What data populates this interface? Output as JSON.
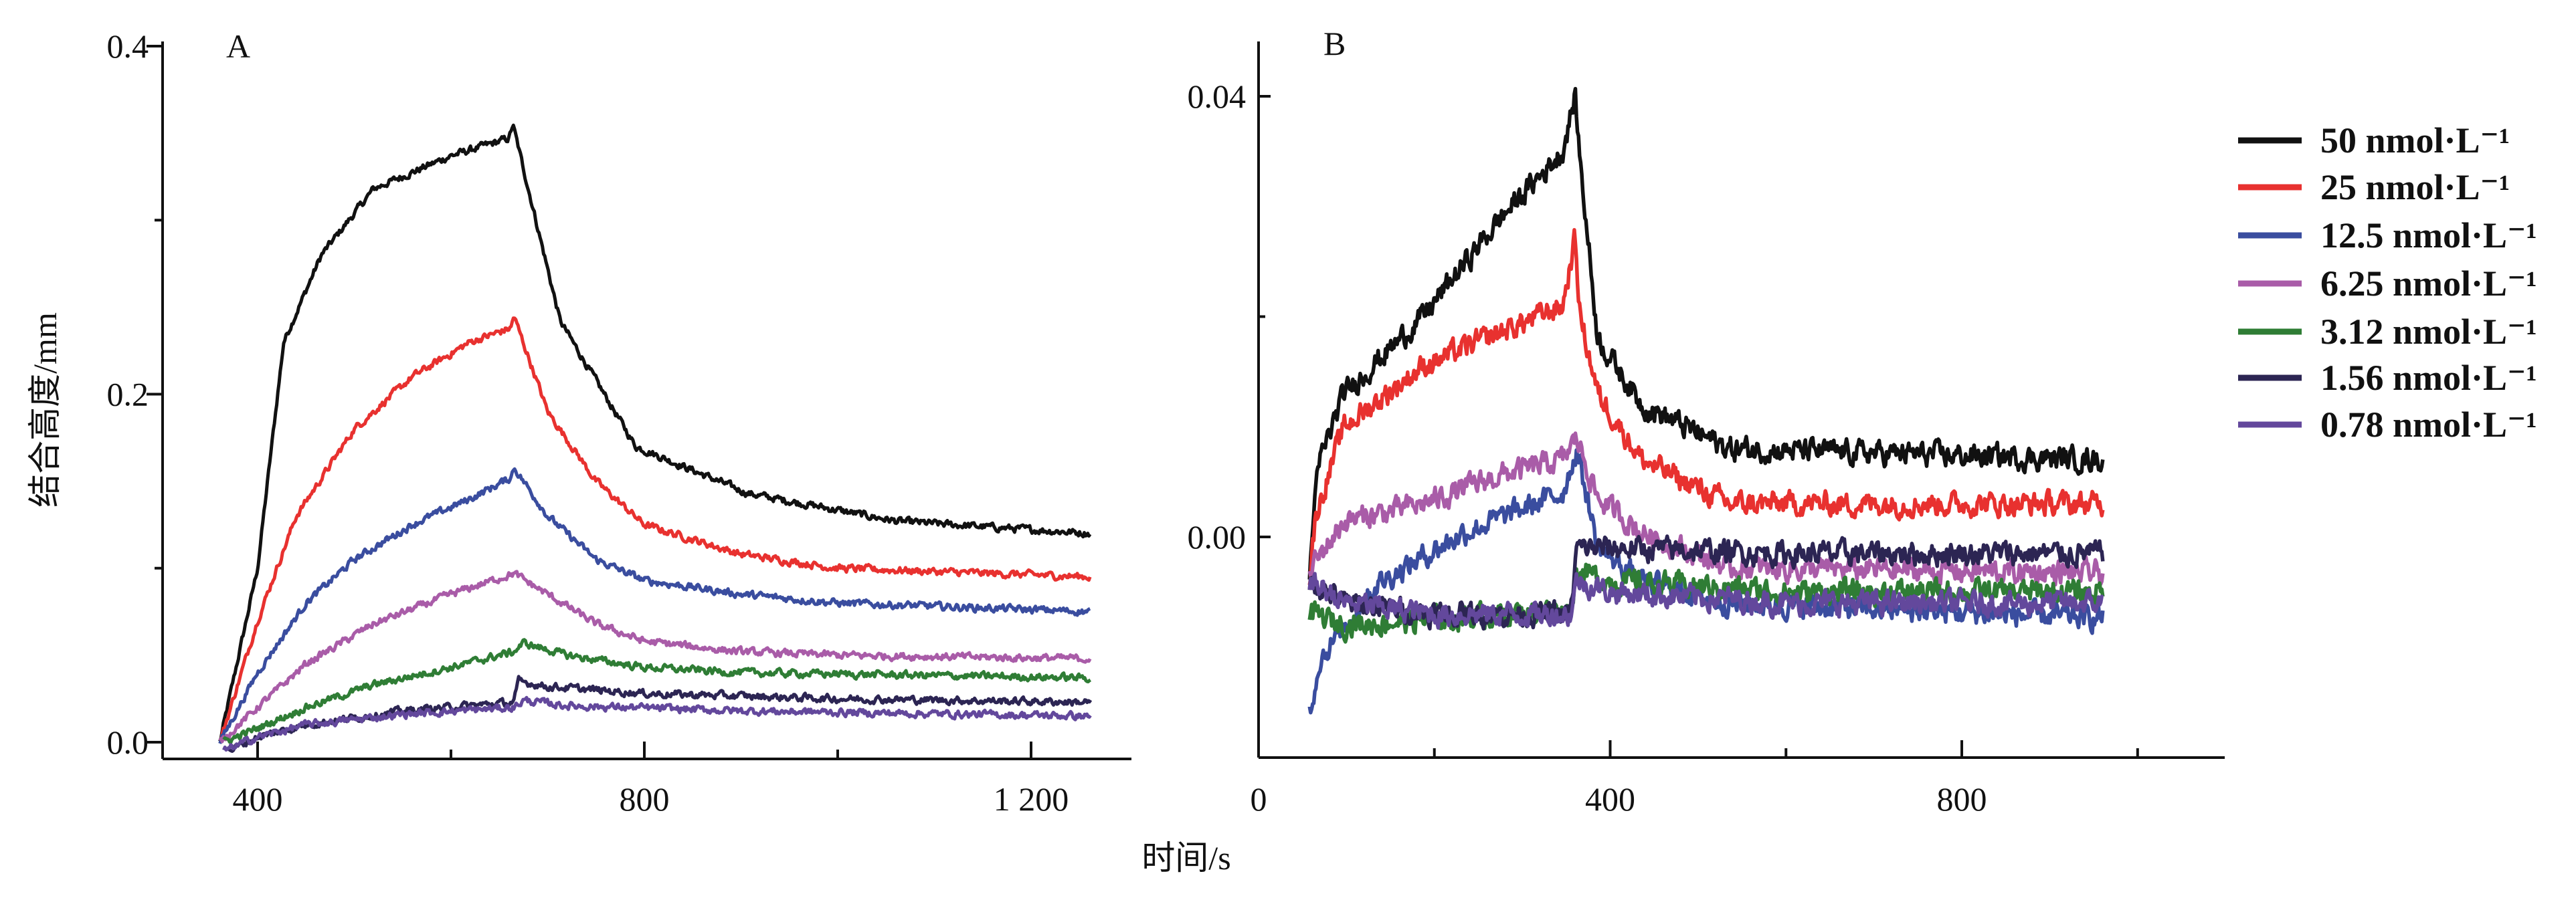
{
  "x_label": "时间/s",
  "chart_data": [
    {
      "type": "line",
      "panel_label": "A",
      "ylabel": "结合高度/mm",
      "xlabel": "时间/s",
      "xlim": [
        300,
        1300
      ],
      "ylim": [
        0,
        0.4
      ],
      "x_ticks": [
        {
          "value": 400,
          "label": "400"
        },
        {
          "value": 800,
          "label": "800"
        },
        {
          "value": 1200,
          "label": "1 200"
        }
      ],
      "x_minor_ticks": [
        600,
        1000
      ],
      "y_ticks": [
        {
          "value": 0,
          "label": "0.0"
        },
        {
          "value": 0.2,
          "label": "0.2"
        },
        {
          "value": 0.4,
          "label": "0.4"
        }
      ],
      "y_minor_ticks": [
        0.1,
        0.3
      ],
      "grid": false,
      "series": [
        {
          "name": "50 nmol·L⁻¹",
          "color": "#111111",
          "points": [
            [
              361,
              0
            ],
            [
              400,
              0.1
            ],
            [
              427,
              0.23
            ],
            [
              466,
              0.28
            ],
            [
              520,
              0.318
            ],
            [
              600,
              0.337
            ],
            [
              660,
              0.347
            ],
            [
              664,
              0.355
            ],
            [
              713,
              0.242
            ],
            [
              791,
              0.17
            ],
            [
              907,
              0.143
            ],
            [
              1061,
              0.127
            ],
            [
              1262,
              0.12
            ]
          ]
        },
        {
          "name": "25 nmol·L⁻¹",
          "color": "#e8312f",
          "points": [
            [
              361,
              0
            ],
            [
              400,
              0.07
            ],
            [
              440,
              0.13
            ],
            [
              500,
              0.18
            ],
            [
              560,
              0.21
            ],
            [
              620,
              0.23
            ],
            [
              662,
              0.238
            ],
            [
              665,
              0.245
            ],
            [
              700,
              0.19
            ],
            [
              750,
              0.15
            ],
            [
              800,
              0.125
            ],
            [
              900,
              0.108
            ],
            [
              1000,
              0.1
            ],
            [
              1262,
              0.095
            ]
          ]
        },
        {
          "name": "12.5 nmol·L⁻¹",
          "color": "#3a4d9f",
          "points": [
            [
              361,
              0
            ],
            [
              400,
              0.04
            ],
            [
              450,
              0.08
            ],
            [
              500,
              0.105
            ],
            [
              560,
              0.125
            ],
            [
              620,
              0.14
            ],
            [
              662,
              0.152
            ],
            [
              665,
              0.158
            ],
            [
              700,
              0.13
            ],
            [
              750,
              0.105
            ],
            [
              800,
              0.093
            ],
            [
              900,
              0.085
            ],
            [
              1000,
              0.08
            ],
            [
              1262,
              0.075
            ]
          ]
        },
        {
          "name": "6.25 nmol·L⁻¹",
          "color": "#a95ca8",
          "points": [
            [
              361,
              0
            ],
            [
              400,
              0.02
            ],
            [
              450,
              0.045
            ],
            [
              520,
              0.068
            ],
            [
              600,
              0.085
            ],
            [
              665,
              0.097
            ],
            [
              700,
              0.085
            ],
            [
              750,
              0.068
            ],
            [
              800,
              0.058
            ],
            [
              900,
              0.052
            ],
            [
              1000,
              0.05
            ],
            [
              1262,
              0.048
            ]
          ]
        },
        {
          "name": "3.12 nmol·L⁻¹",
          "color": "#2f7d35",
          "points": [
            [
              365,
              0
            ],
            [
              400,
              0.008
            ],
            [
              450,
              0.02
            ],
            [
              520,
              0.033
            ],
            [
              600,
              0.043
            ],
            [
              665,
              0.052
            ],
            [
              675,
              0.057
            ],
            [
              720,
              0.05
            ],
            [
              800,
              0.043
            ],
            [
              900,
              0.04
            ],
            [
              1262,
              0.037
            ]
          ]
        },
        {
          "name": "1.56 nmol·L⁻¹",
          "color": "#2c2553",
          "points": [
            [
              370,
              -0.005
            ],
            [
              400,
              0.003
            ],
            [
              450,
              0.01
            ],
            [
              550,
              0.018
            ],
            [
              665,
              0.023
            ],
            [
              670,
              0.035
            ],
            [
              700,
              0.032
            ],
            [
              800,
              0.028
            ],
            [
              1000,
              0.025
            ],
            [
              1262,
              0.023
            ]
          ]
        },
        {
          "name": "0.78 nmol·L⁻¹",
          "color": "#63489c",
          "points": [
            [
              365,
              -0.005
            ],
            [
              400,
              0.003
            ],
            [
              450,
              0.01
            ],
            [
              550,
              0.016
            ],
            [
              665,
              0.02
            ],
            [
              675,
              0.024
            ],
            [
              720,
              0.021
            ],
            [
              900,
              0.018
            ],
            [
              1262,
              0.015
            ]
          ]
        }
      ]
    },
    {
      "type": "line",
      "panel_label": "B",
      "xlabel": "时间/s",
      "xlim": [
        0,
        1037
      ],
      "ylim": [
        -0.02,
        0.045
      ],
      "x_ticks": [
        {
          "value": 0,
          "label": "0"
        },
        {
          "value": 400,
          "label": "400"
        },
        {
          "value": 800,
          "label": "800"
        }
      ],
      "x_minor_ticks": [
        200,
        600,
        1000
      ],
      "y_ticks": [
        {
          "value": 0,
          "label": "0.00"
        },
        {
          "value": 0.04,
          "label": "0.04"
        }
      ],
      "y_minor_ticks": [
        0.02
      ],
      "grid": false,
      "legend_position": "right",
      "series": [
        {
          "name": "50 nmol·L⁻¹",
          "color": "#111111",
          "points": [
            [
              58,
              -0.004
            ],
            [
              62,
              0.002
            ],
            [
              70,
              0.007
            ],
            [
              97,
              0.013
            ],
            [
              187,
              0.02
            ],
            [
              276,
              0.029
            ],
            [
              346,
              0.035
            ],
            [
              360,
              0.04
            ],
            [
              366,
              0.034
            ],
            [
              386,
              0.018
            ],
            [
              436,
              0.012
            ],
            [
              535,
              0.008
            ],
            [
              961,
              0.007
            ]
          ]
        },
        {
          "name": "25 nmol·L⁻¹",
          "color": "#e8312f",
          "points": [
            [
              58,
              -0.004
            ],
            [
              65,
              0.002
            ],
            [
              97,
              0.01
            ],
            [
              187,
              0.0155
            ],
            [
              276,
              0.0186
            ],
            [
              346,
              0.021
            ],
            [
              360,
              0.027
            ],
            [
              366,
              0.02
            ],
            [
              386,
              0.013
            ],
            [
              436,
              0.007
            ],
            [
              535,
              0.003
            ],
            [
              961,
              0.003
            ]
          ]
        },
        {
          "name": "12.5 nmol·L⁻¹",
          "color": "#3a4d9f",
          "points": [
            [
              58,
              -0.016
            ],
            [
              70,
              -0.011
            ],
            [
              100,
              -0.008
            ],
            [
              134,
              -0.0043
            ],
            [
              234,
              0.0004
            ],
            [
              346,
              0.004
            ],
            [
              362,
              0.008
            ],
            [
              386,
              -0.001
            ],
            [
              436,
              -0.004
            ],
            [
              535,
              -0.006
            ],
            [
              961,
              -0.0074
            ]
          ]
        },
        {
          "name": "6.25 nmol·L⁻¹",
          "color": "#a95ca8",
          "points": [
            [
              58,
              -0.003
            ],
            [
              97,
              0.0014
            ],
            [
              187,
              0.003
            ],
            [
              276,
              0.0056
            ],
            [
              346,
              0.007
            ],
            [
              362,
              0.009
            ],
            [
              386,
              0.0035
            ],
            [
              436,
              0.0004
            ],
            [
              535,
              -0.0028
            ],
            [
              961,
              -0.0033
            ]
          ]
        },
        {
          "name": "3.12 nmol·L⁻¹",
          "color": "#2f7d35",
          "points": [
            [
              58,
              -0.007
            ],
            [
              100,
              -0.008
            ],
            [
              200,
              -0.0075
            ],
            [
              355,
              -0.0065
            ],
            [
              362,
              -0.003
            ],
            [
              400,
              -0.004
            ],
            [
              600,
              -0.005
            ],
            [
              961,
              -0.005
            ]
          ]
        },
        {
          "name": "1.56 nmol·L⁻¹",
          "color": "#2c2553",
          "points": [
            [
              58,
              -0.004
            ],
            [
              100,
              -0.006
            ],
            [
              200,
              -0.007
            ],
            [
              355,
              -0.007
            ],
            [
              362,
              -0.001
            ],
            [
              400,
              -0.001
            ],
            [
              600,
              -0.0015
            ],
            [
              961,
              -0.0015
            ]
          ]
        },
        {
          "name": "0.78 nmol·L⁻¹",
          "color": "#63489c",
          "points": [
            [
              58,
              -0.004
            ],
            [
              100,
              -0.006
            ],
            [
              200,
              -0.007
            ],
            [
              355,
              -0.007
            ],
            [
              362,
              -0.004
            ],
            [
              400,
              -0.005
            ],
            [
              600,
              -0.006
            ],
            [
              961,
              -0.006
            ]
          ]
        }
      ]
    }
  ]
}
